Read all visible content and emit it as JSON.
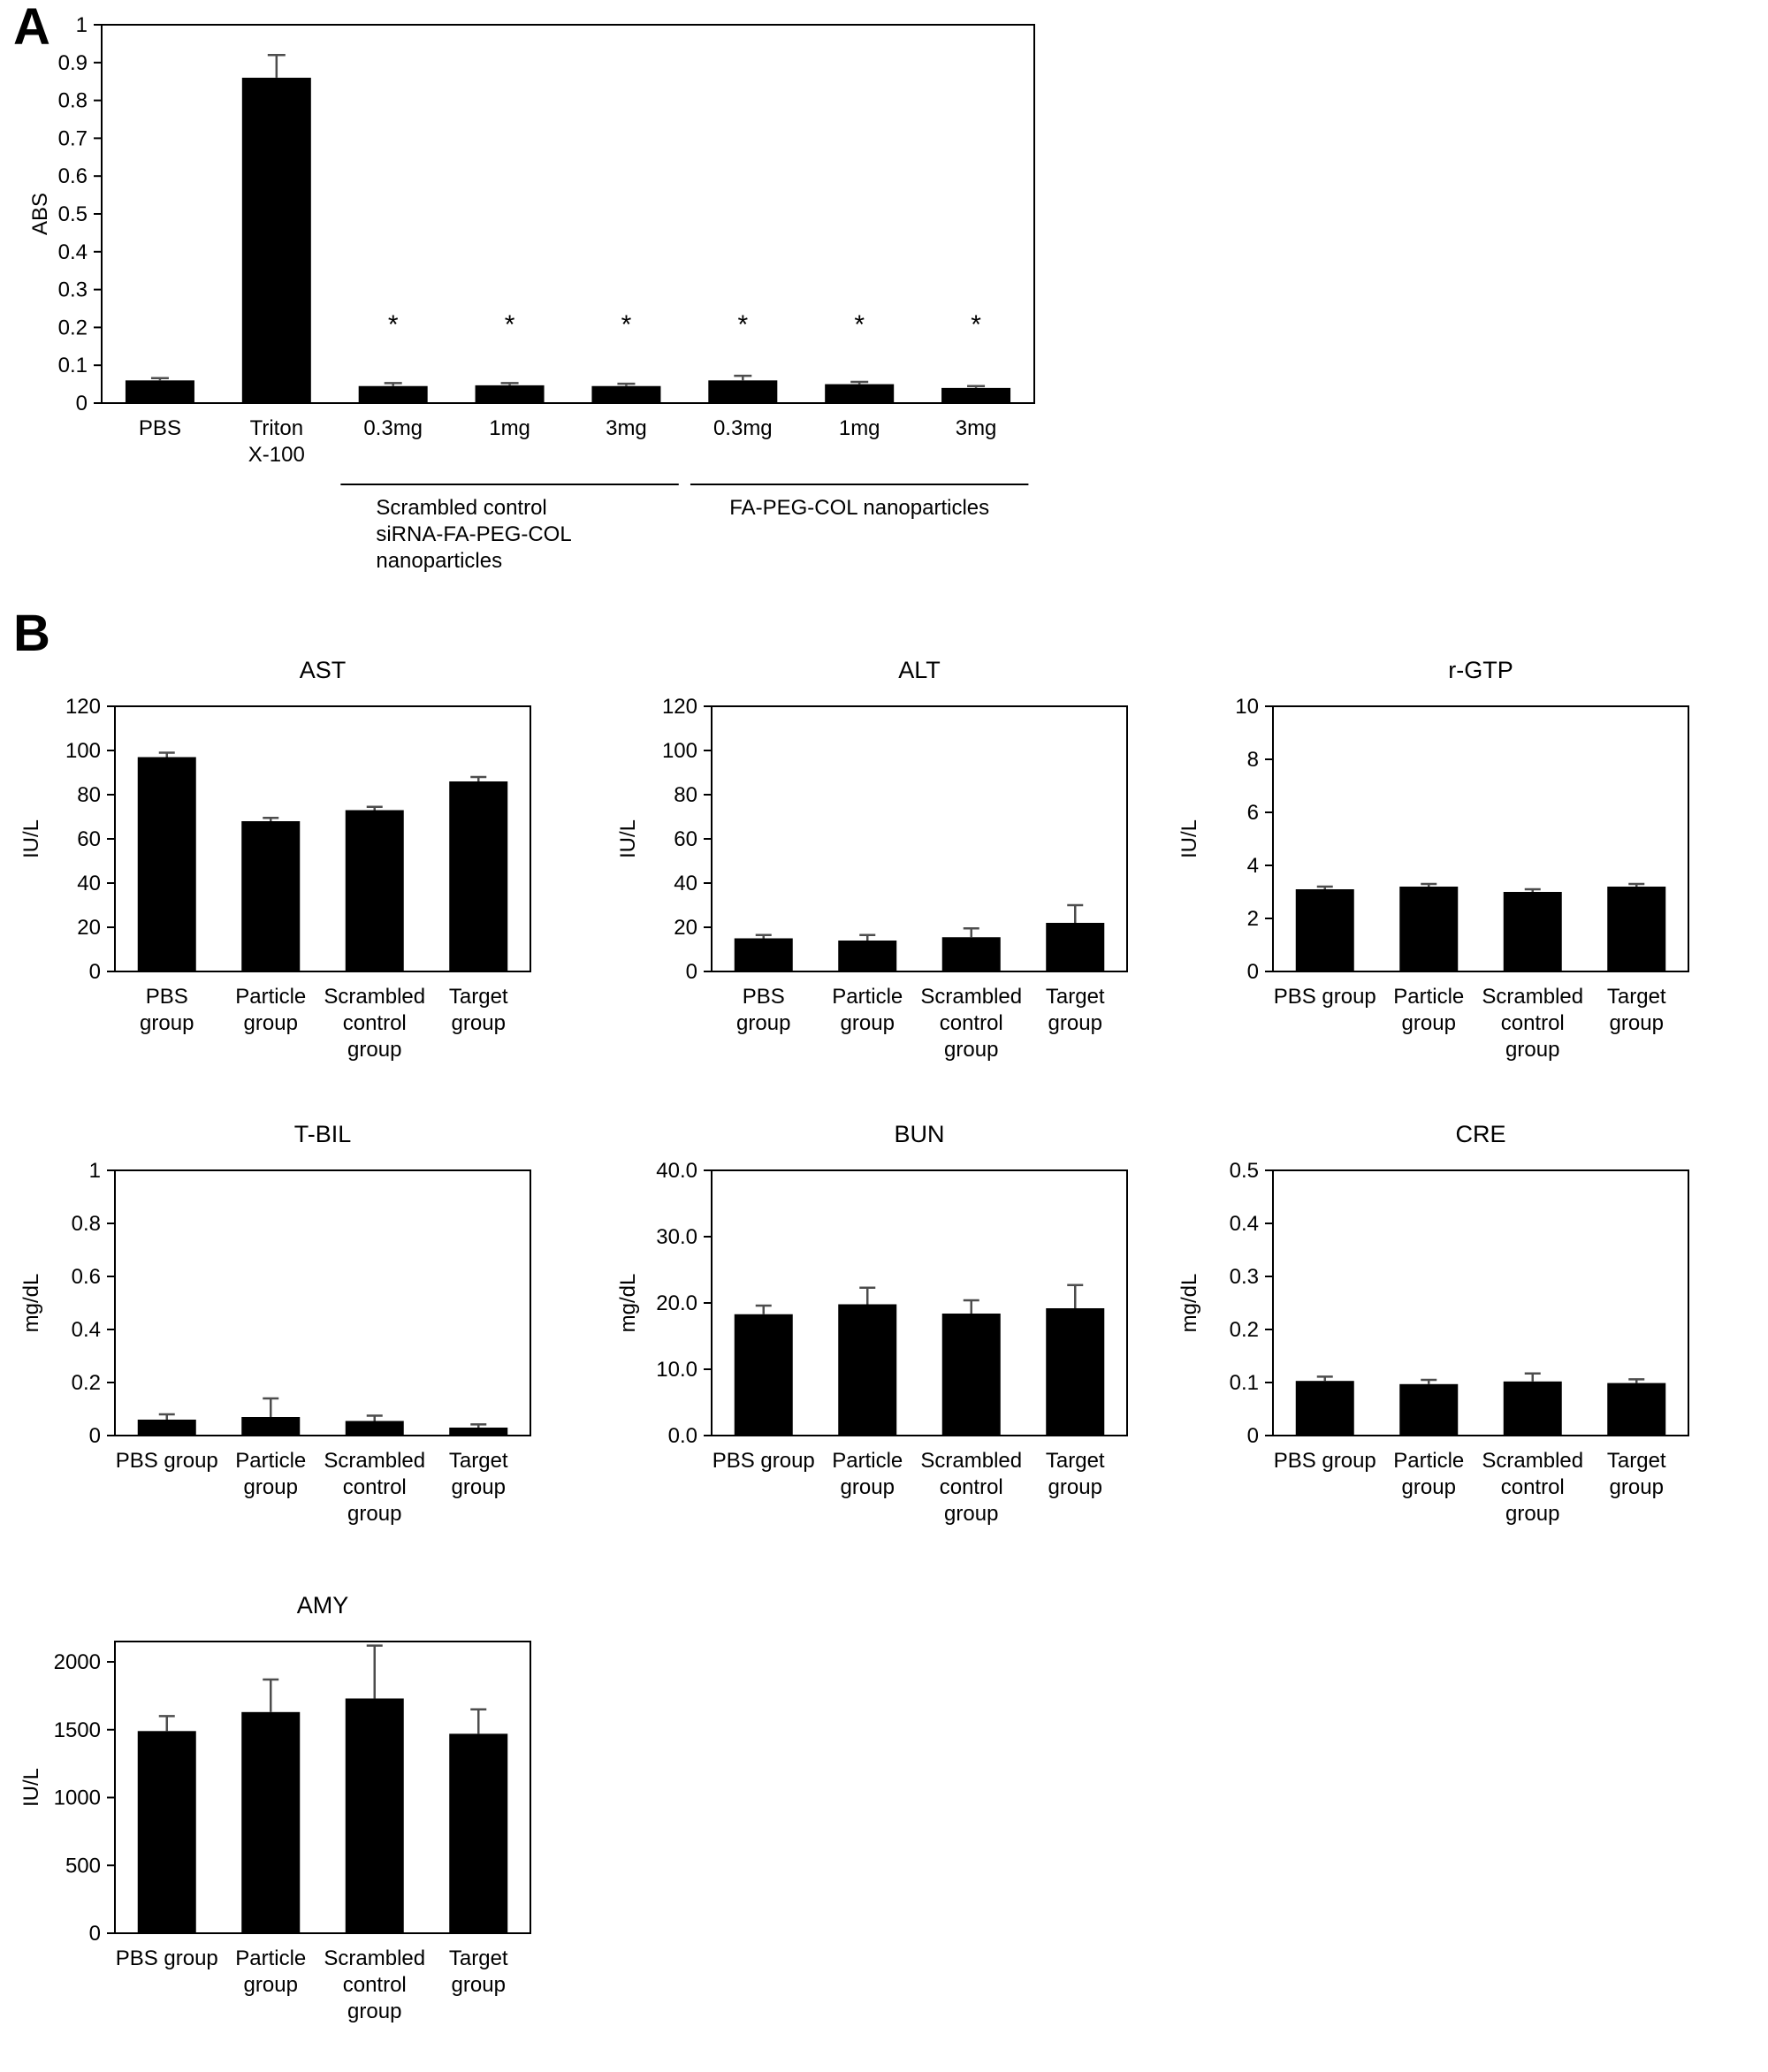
{
  "figure": {
    "panel_a_label": "A",
    "panel_b_label": "B"
  },
  "chart_data": [
    {
      "id": "cytotoxicity",
      "panel": "A",
      "type": "bar",
      "title": "",
      "ylabel": "ABS",
      "ylim": [
        0,
        1
      ],
      "ytick_labels": [
        "0",
        "0.1",
        "0.2",
        "0.3",
        "0.4",
        "0.5",
        "0.6",
        "0.7",
        "0.8",
        "0.9",
        "1"
      ],
      "categories": [
        [
          "PBS"
        ],
        [
          "Triton",
          "X-100"
        ],
        [
          "0.3mg"
        ],
        [
          "1mg"
        ],
        [
          "3mg"
        ],
        [
          "0.3mg"
        ],
        [
          "1mg"
        ],
        [
          "3mg"
        ]
      ],
      "values": [
        0.06,
        0.86,
        0.045,
        0.047,
        0.045,
        0.06,
        0.05,
        0.04
      ],
      "errors": [
        0.006,
        0.06,
        0.008,
        0.006,
        0.006,
        0.012,
        0.006,
        0.005
      ],
      "asterisks": [
        false,
        false,
        true,
        true,
        true,
        true,
        true,
        true
      ],
      "asterisk_y": 0.185,
      "groups": [
        {
          "label": [
            "Scrambled control",
            "siRNA-FA-PEG-COL",
            "nanoparticles"
          ],
          "from": 2,
          "to": 4
        },
        {
          "label": [
            "FA-PEG-COL nanoparticles"
          ],
          "from": 5,
          "to": 7
        }
      ]
    },
    {
      "id": "ast",
      "panel": "B",
      "type": "bar",
      "title": "AST",
      "ylabel": "IU/L",
      "ylim": [
        0,
        120
      ],
      "ytick_labels": [
        "0",
        "20",
        "40",
        "60",
        "80",
        "100",
        "120"
      ],
      "categories": [
        [
          "PBS",
          "group"
        ],
        [
          "Particle",
          "group"
        ],
        [
          "Scrambled",
          "control",
          "group"
        ],
        [
          "Target",
          "group"
        ]
      ],
      "values": [
        97,
        68,
        73,
        86
      ],
      "errors": [
        2,
        1.5,
        1.5,
        2
      ]
    },
    {
      "id": "alt",
      "panel": "B",
      "type": "bar",
      "title": "ALT",
      "ylabel": "IU/L",
      "ylim": [
        0,
        120
      ],
      "ytick_labels": [
        "0",
        "20",
        "40",
        "60",
        "80",
        "100",
        "120"
      ],
      "categories": [
        [
          "PBS",
          "group"
        ],
        [
          "Particle",
          "group"
        ],
        [
          "Scrambled",
          "control",
          "group"
        ],
        [
          "Target",
          "group"
        ]
      ],
      "values": [
        15,
        14,
        15.5,
        22
      ],
      "errors": [
        1.5,
        2.5,
        4,
        8
      ]
    },
    {
      "id": "rgtp",
      "panel": "B",
      "type": "bar",
      "title": "r-GTP",
      "ylabel": "IU/L",
      "ylim": [
        0,
        10
      ],
      "ytick_labels": [
        "0",
        "2",
        "4",
        "6",
        "8",
        "10"
      ],
      "categories": [
        [
          "PBS group"
        ],
        [
          "Particle",
          "group"
        ],
        [
          "Scrambled",
          "control",
          "group"
        ],
        [
          "Target",
          "group"
        ]
      ],
      "values": [
        3.1,
        3.2,
        3.0,
        3.2
      ],
      "errors": [
        0.1,
        0.1,
        0.1,
        0.1
      ]
    },
    {
      "id": "tbil",
      "panel": "B",
      "type": "bar",
      "title": "T-BIL",
      "ylabel": "mg/dL",
      "ylim": [
        0,
        1
      ],
      "ytick_labels": [
        "0",
        "0.2",
        "0.4",
        "0.6",
        "0.8",
        "1"
      ],
      "categories": [
        [
          "PBS group"
        ],
        [
          "Particle",
          "group"
        ],
        [
          "Scrambled",
          "control",
          "group"
        ],
        [
          "Target",
          "group"
        ]
      ],
      "values": [
        0.06,
        0.07,
        0.055,
        0.03
      ],
      "errors": [
        0.02,
        0.07,
        0.02,
        0.012
      ]
    },
    {
      "id": "bun",
      "panel": "B",
      "type": "bar",
      "title": "BUN",
      "ylabel": "mg/dL",
      "ylim": [
        0,
        40
      ],
      "ytick_labels": [
        "0.0",
        "10.0",
        "20.0",
        "30.0",
        "40.0"
      ],
      "categories": [
        [
          "PBS group"
        ],
        [
          "Particle",
          "group"
        ],
        [
          "Scrambled",
          "control",
          "group"
        ],
        [
          "Target",
          "group"
        ]
      ],
      "values": [
        18.3,
        19.8,
        18.4,
        19.2
      ],
      "errors": [
        1.3,
        2.5,
        2.0,
        3.5
      ]
    },
    {
      "id": "cre",
      "panel": "B",
      "type": "bar",
      "title": "CRE",
      "ylabel": "mg/dL",
      "ylim": [
        0,
        0.5
      ],
      "ytick_labels": [
        "0",
        "0.1",
        "0.2",
        "0.3",
        "0.4",
        "0.5"
      ],
      "categories": [
        [
          "PBS group"
        ],
        [
          "Particle",
          "group"
        ],
        [
          "Scrambled",
          "control",
          "group"
        ],
        [
          "Target",
          "group"
        ]
      ],
      "values": [
        0.103,
        0.097,
        0.102,
        0.099
      ],
      "errors": [
        0.008,
        0.008,
        0.015,
        0.007
      ]
    },
    {
      "id": "amy",
      "panel": "B",
      "type": "bar",
      "title": "AMY",
      "ylabel": "IU/L",
      "ylim": [
        0,
        2150
      ],
      "ytick_labels": [
        "0",
        "500",
        "1000",
        "1500",
        "2000"
      ],
      "categories": [
        [
          "PBS group"
        ],
        [
          "Particle",
          "group"
        ],
        [
          "Scrambled",
          "control",
          "group"
        ],
        [
          "Target",
          "group"
        ]
      ],
      "values": [
        1490,
        1630,
        1730,
        1470
      ],
      "errors": [
        110,
        240,
        390,
        180
      ]
    }
  ]
}
